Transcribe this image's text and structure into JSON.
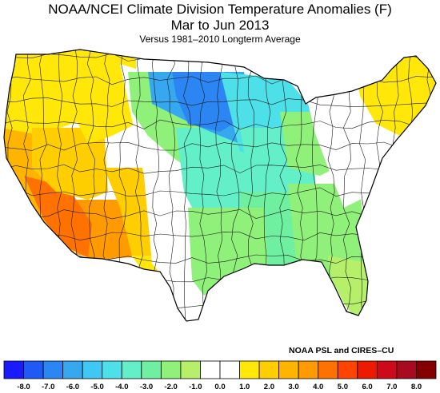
{
  "header": {
    "title_line1": "NOAA/NCEI Climate Division Temperature Anomalies (F)",
    "title_line2": "Mar to Jun 2013",
    "subtitle": "Versus 1981–2010 Longterm Average"
  },
  "credit": "NOAA PSL and CIRES–CU",
  "legend": {
    "colors": [
      "#1a1aff",
      "#1f5af5",
      "#2b85f2",
      "#36a8f0",
      "#3fc8f4",
      "#4ee0e8",
      "#63f0c8",
      "#6ff0a0",
      "#8ff07a",
      "#b6f06a",
      "#ffffff",
      "#ffffff",
      "#ffe70a",
      "#ffce00",
      "#ffb400",
      "#ff9a00",
      "#ff7200",
      "#ff4300",
      "#ee1a00",
      "#cc0a1a",
      "#a80a20",
      "#840000"
    ],
    "tick_labels": [
      "-8.0",
      "-7.0",
      "-6.0",
      "-5.0",
      "-4.0",
      "-3.0",
      "-2.0",
      "-1.0",
      "0.0",
      "1.0",
      "2.0",
      "3.0",
      "4.0",
      "5.0",
      "6.0",
      "7.0",
      "8.0"
    ]
  },
  "regions": [
    {
      "name": "pacific-northwest",
      "color": "#ffe70a"
    },
    {
      "name": "california-coast",
      "color": "#ffb400"
    },
    {
      "name": "southwest-desert",
      "color": "#ff9a00"
    },
    {
      "name": "southern-california",
      "color": "#ff7200"
    },
    {
      "name": "great-basin",
      "color": "#ffce00"
    },
    {
      "name": "northern-rockies",
      "color": "#ffe70a"
    },
    {
      "name": "four-corners",
      "color": "#ffce00"
    },
    {
      "name": "west-texas",
      "color": "#ffe70a"
    },
    {
      "name": "rockies-neutral",
      "color": "#ffffff"
    },
    {
      "name": "northern-plains",
      "color": "#8ff07a"
    },
    {
      "name": "central-plains",
      "color": "#63f0c8"
    },
    {
      "name": "upper-midwest-west",
      "color": "#36a8f0"
    },
    {
      "name": "upper-midwest-core",
      "color": "#2b85f2"
    },
    {
      "name": "great-lakes",
      "color": "#4ee0e8"
    },
    {
      "name": "midwest",
      "color": "#63f0c8"
    },
    {
      "name": "south-central",
      "color": "#6ff0a0"
    },
    {
      "name": "southeast",
      "color": "#8ff07a"
    },
    {
      "name": "florida",
      "color": "#b6f06a"
    },
    {
      "name": "texas-gulf",
      "color": "#8ff07a"
    },
    {
      "name": "ohio-valley",
      "color": "#8ff07a"
    },
    {
      "name": "mid-atlantic-neutral",
      "color": "#ffffff"
    },
    {
      "name": "new-england",
      "color": "#ffe70a"
    }
  ]
}
